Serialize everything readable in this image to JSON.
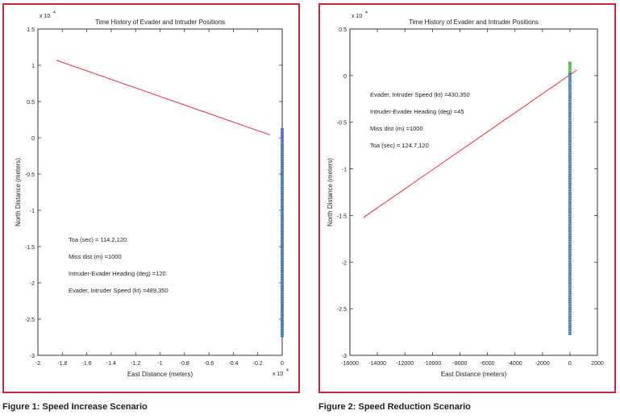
{
  "chart_data": [
    {
      "type": "line",
      "title": "Time History of Evader and Intruder Positions",
      "xlabel": "East Distance (meters)",
      "ylabel": "North Distance (meters)",
      "x_exponent_label": "x 10",
      "x_exponent": "4",
      "y_exponent_label": "x 10",
      "y_exponent": "4",
      "xlim": [
        -2,
        0
      ],
      "ylim": [
        -3,
        1.5
      ],
      "grid": false,
      "x_ticks": [
        "-2",
        "-1.8",
        "-1.6",
        "-1.4",
        "-1.2",
        "-1",
        "-0.8",
        "-0.6",
        "-0.4",
        "-0.2",
        "0"
      ],
      "y_ticks": [
        "1.5",
        "1",
        "0.5",
        "0",
        "-0.5",
        "-1",
        "-1.5",
        "-2",
        "-2.5",
        "-3"
      ],
      "series": [
        {
          "color": "#e8434f",
          "style": "line",
          "x": [
            -1.85,
            -0.1
          ],
          "y": [
            1.07,
            0.04
          ]
        },
        {
          "color": "#5a5fc9",
          "style": "markers",
          "x": [
            0.0,
            0.0
          ],
          "y": [
            0.12,
            -0.05
          ]
        },
        {
          "color": "#3a7ba8",
          "style": "markers",
          "x": [
            0.0,
            0.0
          ],
          "y": [
            -0.05,
            -2.75
          ]
        }
      ],
      "annotations": [
        "Toa (sec) = 114.2,120",
        "Miss dist (m) =1000",
        "Intruder-Evader Heading (deg) =120",
        "Evader, Intruder Speed (kt) =489,350"
      ]
    },
    {
      "type": "line",
      "title": "Time History of Evader and Intruder Positions",
      "xlabel": "East Distance (meters)",
      "ylabel": "North Distance (meters)",
      "y_exponent_label": "x 10",
      "y_exponent": "4",
      "xlim": [
        -16000,
        2000
      ],
      "ylim": [
        -3,
        0.5
      ],
      "grid": false,
      "x_ticks": [
        "-16000",
        "-14000",
        "-12000",
        "-10000",
        "-8000",
        "-6000",
        "-4000",
        "-2000",
        "0",
        "2000"
      ],
      "y_ticks": [
        "0.5",
        "0",
        "-0.5",
        "-1",
        "-1.5",
        "-2",
        "-2.5",
        "-3"
      ],
      "series": [
        {
          "color": "#e8434f",
          "style": "line",
          "x": [
            -15000,
            500
          ],
          "y": [
            -1.52,
            0.06
          ]
        },
        {
          "color": "#4caf3a",
          "style": "markers",
          "x": [
            0,
            0
          ],
          "y": [
            0.14,
            0.02
          ]
        },
        {
          "color": "#3a7ba8",
          "style": "markers",
          "x": [
            0,
            0
          ],
          "y": [
            0.02,
            -2.78
          ]
        }
      ],
      "annotations": [
        "Evader, Intruder Speed (kt) =430,350",
        "Intruder-Evader Heading (deg) =45",
        "Miss dist (m) =1000",
        "Toa (sec) = 124.7,120"
      ]
    }
  ],
  "captions": {
    "figure1": "Figure 1: Speed Increase Scenario",
    "figure2": "Figure 2: Speed Reduction Scenario"
  }
}
